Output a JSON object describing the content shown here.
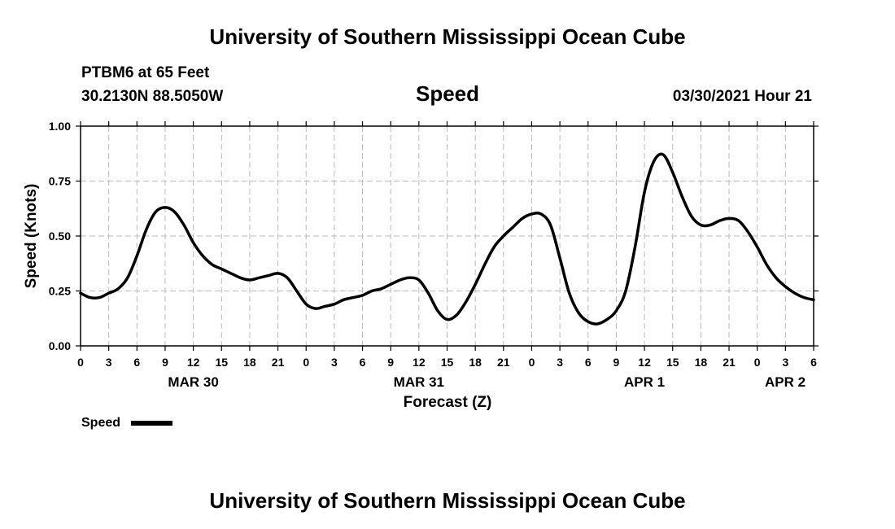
{
  "header": {
    "title": "University of Southern Mississippi Ocean Cube",
    "station": "PTBM6 at 65 Feet",
    "location": "30.2130N  88.5050W",
    "variable": "Speed",
    "datetime": "03/30/2021 Hour 21"
  },
  "footer": {
    "title": "University of Southern Mississippi Ocean Cube"
  },
  "chart_data": {
    "type": "line",
    "title": "Speed",
    "xlabel": "Forecast (Z)",
    "ylabel": "Speed (Knots)",
    "x_unit": "hours since MAR 30 00Z",
    "xlim": [
      0,
      78
    ],
    "ylim": [
      0.0,
      1.0
    ],
    "grid": true,
    "y_ticks": [
      "0.00",
      "0.25",
      "0.50",
      "0.75",
      "1.00"
    ],
    "x_ticks": [
      {
        "x": 0,
        "label": "0"
      },
      {
        "x": 3,
        "label": "3"
      },
      {
        "x": 6,
        "label": "6"
      },
      {
        "x": 9,
        "label": "9"
      },
      {
        "x": 12,
        "label": "12"
      },
      {
        "x": 15,
        "label": "15"
      },
      {
        "x": 18,
        "label": "18"
      },
      {
        "x": 21,
        "label": "21"
      },
      {
        "x": 24,
        "label": "0"
      },
      {
        "x": 27,
        "label": "3"
      },
      {
        "x": 30,
        "label": "6"
      },
      {
        "x": 33,
        "label": "9"
      },
      {
        "x": 36,
        "label": "12"
      },
      {
        "x": 39,
        "label": "15"
      },
      {
        "x": 42,
        "label": "18"
      },
      {
        "x": 45,
        "label": "21"
      },
      {
        "x": 48,
        "label": "0"
      },
      {
        "x": 51,
        "label": "3"
      },
      {
        "x": 54,
        "label": "6"
      },
      {
        "x": 57,
        "label": "9"
      },
      {
        "x": 60,
        "label": "12"
      },
      {
        "x": 63,
        "label": "15"
      },
      {
        "x": 66,
        "label": "18"
      },
      {
        "x": 69,
        "label": "21"
      },
      {
        "x": 72,
        "label": "0"
      },
      {
        "x": 75,
        "label": "3"
      },
      {
        "x": 78,
        "label": "6"
      }
    ],
    "date_labels": [
      {
        "x": 12,
        "label": "MAR 30"
      },
      {
        "x": 36,
        "label": "MAR 31"
      },
      {
        "x": 60,
        "label": "APR 1"
      },
      {
        "x": 78,
        "label": "APR 2"
      }
    ],
    "legend": {
      "label": "Speed",
      "position": "bottom-left"
    },
    "series": [
      {
        "name": "Speed",
        "x": [
          0,
          1,
          2,
          3,
          4,
          5,
          6,
          7,
          8,
          9,
          10,
          11,
          12,
          13,
          14,
          15,
          16,
          17,
          18,
          19,
          20,
          21,
          22,
          23,
          24,
          25,
          26,
          27,
          28,
          29,
          30,
          31,
          32,
          33,
          34,
          35,
          36,
          37,
          38,
          39,
          40,
          41,
          42,
          43,
          44,
          45,
          46,
          47,
          48,
          49,
          50,
          51,
          52,
          53,
          54,
          55,
          56,
          57,
          58,
          59,
          60,
          61,
          62,
          63,
          64,
          65,
          66,
          67,
          68,
          69,
          70,
          71,
          72,
          73,
          74,
          75,
          76,
          77,
          78
        ],
        "values": [
          0.24,
          0.22,
          0.22,
          0.24,
          0.26,
          0.31,
          0.41,
          0.53,
          0.61,
          0.63,
          0.61,
          0.55,
          0.47,
          0.41,
          0.37,
          0.35,
          0.33,
          0.31,
          0.3,
          0.31,
          0.32,
          0.33,
          0.31,
          0.25,
          0.19,
          0.17,
          0.18,
          0.19,
          0.21,
          0.22,
          0.23,
          0.25,
          0.26,
          0.28,
          0.3,
          0.31,
          0.3,
          0.24,
          0.16,
          0.12,
          0.14,
          0.2,
          0.28,
          0.37,
          0.45,
          0.5,
          0.54,
          0.58,
          0.6,
          0.6,
          0.55,
          0.4,
          0.24,
          0.15,
          0.11,
          0.1,
          0.12,
          0.16,
          0.25,
          0.45,
          0.7,
          0.84,
          0.87,
          0.79,
          0.68,
          0.59,
          0.55,
          0.55,
          0.57,
          0.58,
          0.57,
          0.52,
          0.45,
          0.37,
          0.31,
          0.27,
          0.24,
          0.22,
          0.21
        ]
      }
    ]
  }
}
